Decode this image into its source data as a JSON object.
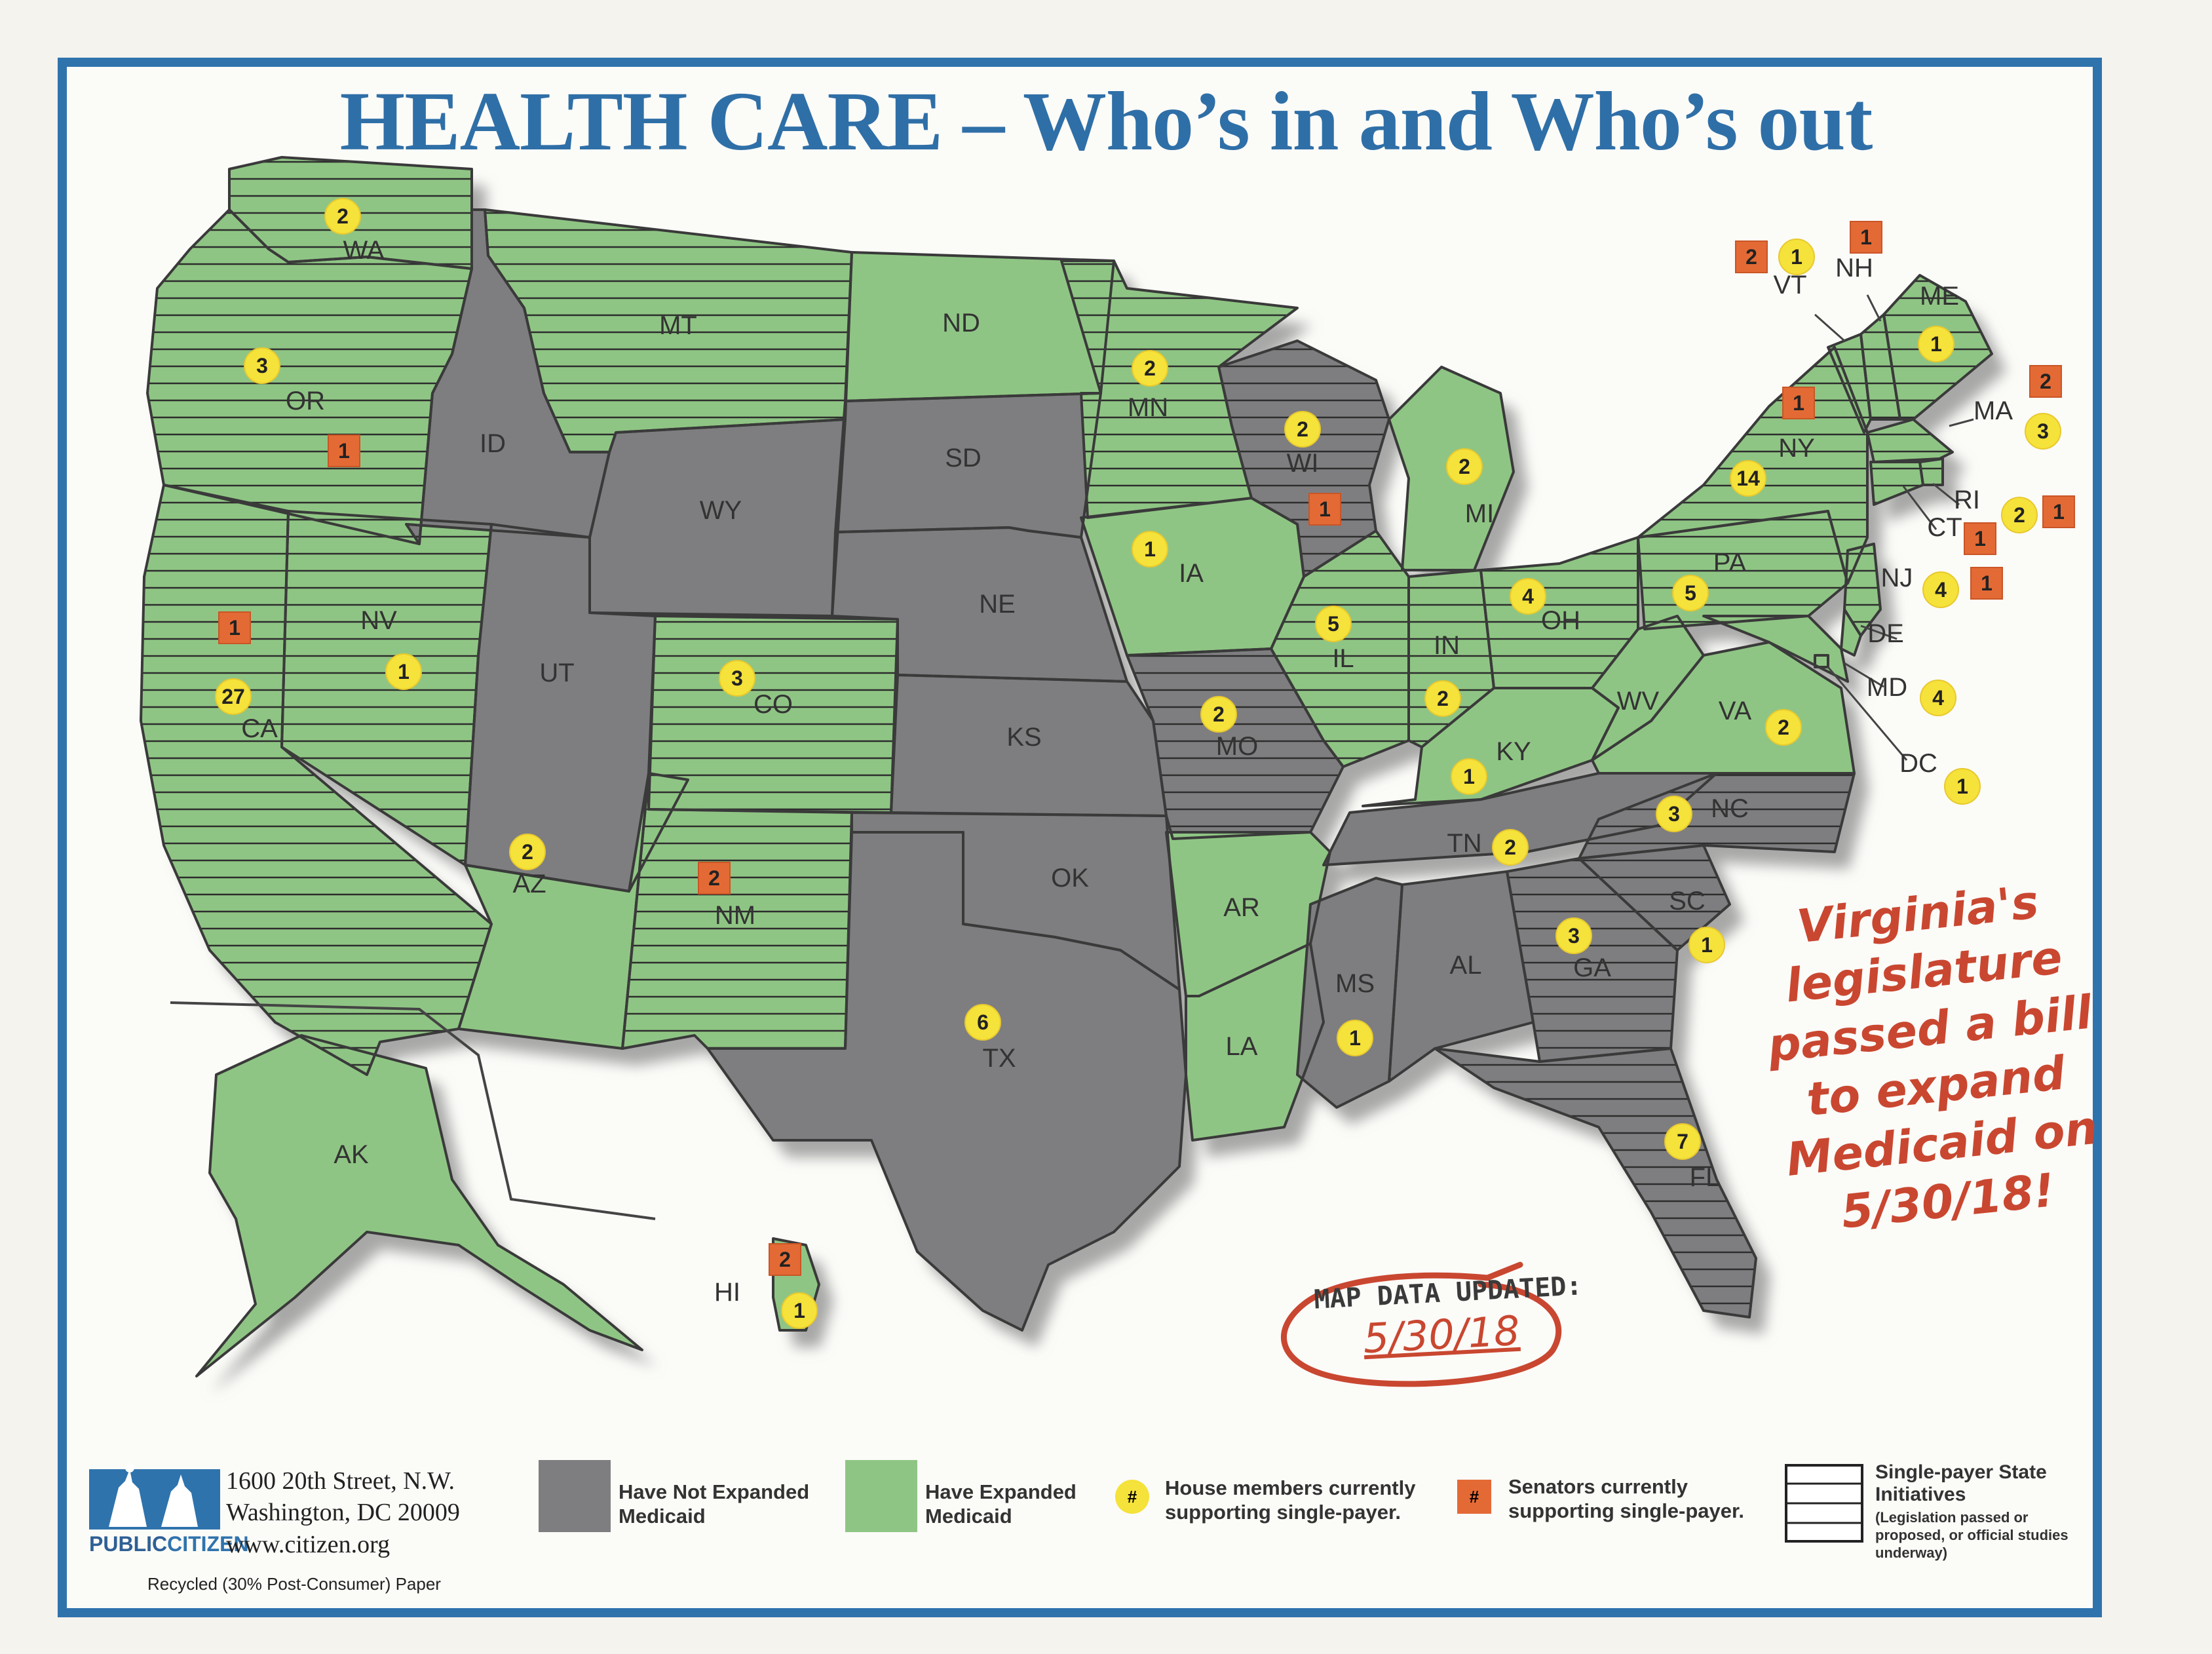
{
  "title": "HEALTH CARE – Who’s in and Who’s out",
  "states": [
    {
      "abbr": "WA",
      "medicaid": "expanded",
      "single_payer_initiative": true,
      "house": 2,
      "senate": null
    },
    {
      "abbr": "OR",
      "medicaid": "expanded",
      "single_payer_initiative": true,
      "house": 3,
      "senate": 1
    },
    {
      "abbr": "CA",
      "medicaid": "expanded",
      "single_payer_initiative": true,
      "house": 27,
      "senate": 1
    },
    {
      "abbr": "NV",
      "medicaid": "expanded",
      "single_payer_initiative": true,
      "house": 1,
      "senate": null
    },
    {
      "abbr": "ID",
      "medicaid": "not_expanded",
      "single_payer_initiative": false,
      "house": null,
      "senate": null
    },
    {
      "abbr": "MT",
      "medicaid": "expanded",
      "single_payer_initiative": true,
      "house": null,
      "senate": null
    },
    {
      "abbr": "WY",
      "medicaid": "not_expanded",
      "single_payer_initiative": false,
      "house": null,
      "senate": null
    },
    {
      "abbr": "UT",
      "medicaid": "not_expanded",
      "single_payer_initiative": false,
      "house": null,
      "senate": null
    },
    {
      "abbr": "CO",
      "medicaid": "expanded",
      "single_payer_initiative": true,
      "house": 3,
      "senate": null
    },
    {
      "abbr": "AZ",
      "medicaid": "expanded",
      "single_payer_initiative": false,
      "house": 2,
      "senate": null
    },
    {
      "abbr": "NM",
      "medicaid": "expanded",
      "single_payer_initiative": true,
      "house": null,
      "senate": 2
    },
    {
      "abbr": "ND",
      "medicaid": "expanded",
      "single_payer_initiative": false,
      "house": null,
      "senate": null
    },
    {
      "abbr": "SD",
      "medicaid": "not_expanded",
      "single_payer_initiative": false,
      "house": null,
      "senate": null
    },
    {
      "abbr": "NE",
      "medicaid": "not_expanded",
      "single_payer_initiative": false,
      "house": null,
      "senate": null
    },
    {
      "abbr": "KS",
      "medicaid": "not_expanded",
      "single_payer_initiative": false,
      "house": null,
      "senate": null
    },
    {
      "abbr": "OK",
      "medicaid": "not_expanded",
      "single_payer_initiative": false,
      "house": null,
      "senate": null
    },
    {
      "abbr": "TX",
      "medicaid": "not_expanded",
      "single_payer_initiative": false,
      "house": 6,
      "senate": null
    },
    {
      "abbr": "MN",
      "medicaid": "expanded",
      "single_payer_initiative": true,
      "house": 2,
      "senate": null
    },
    {
      "abbr": "IA",
      "medicaid": "expanded",
      "single_payer_initiative": false,
      "house": 1,
      "senate": null
    },
    {
      "abbr": "MO",
      "medicaid": "not_expanded",
      "single_payer_initiative": true,
      "house": 2,
      "senate": null
    },
    {
      "abbr": "AR",
      "medicaid": "expanded",
      "single_payer_initiative": false,
      "house": null,
      "senate": null
    },
    {
      "abbr": "LA",
      "medicaid": "expanded",
      "single_payer_initiative": false,
      "house": null,
      "senate": null
    },
    {
      "abbr": "WI",
      "medicaid": "not_expanded",
      "single_payer_initiative": true,
      "house": 2,
      "senate": 1
    },
    {
      "abbr": "IL",
      "medicaid": "expanded",
      "single_payer_initiative": true,
      "house": 5,
      "senate": null
    },
    {
      "abbr": "MI",
      "medicaid": "expanded",
      "single_payer_initiative": false,
      "house": 2,
      "senate": null
    },
    {
      "abbr": "IN",
      "medicaid": "expanded",
      "single_payer_initiative": true,
      "house": 2,
      "senate": null
    },
    {
      "abbr": "OH",
      "medicaid": "expanded",
      "single_payer_initiative": true,
      "house": 4,
      "senate": null
    },
    {
      "abbr": "KY",
      "medicaid": "expanded",
      "single_payer_initiative": false,
      "house": 1,
      "senate": null
    },
    {
      "abbr": "TN",
      "medicaid": "not_expanded",
      "single_payer_initiative": false,
      "house": 2,
      "senate": null
    },
    {
      "abbr": "MS",
      "medicaid": "not_expanded",
      "single_payer_initiative": false,
      "house": 1,
      "senate": null
    },
    {
      "abbr": "AL",
      "medicaid": "not_expanded",
      "single_payer_initiative": false,
      "house": null,
      "senate": null
    },
    {
      "abbr": "GA",
      "medicaid": "not_expanded",
      "single_payer_initiative": true,
      "house": 3,
      "senate": null
    },
    {
      "abbr": "FL",
      "medicaid": "not_expanded",
      "single_payer_initiative": true,
      "house": 7,
      "senate": null
    },
    {
      "abbr": "SC",
      "medicaid": "not_expanded",
      "single_payer_initiative": true,
      "house": 1,
      "senate": null
    },
    {
      "abbr": "NC",
      "medicaid": "not_expanded",
      "single_payer_initiative": true,
      "house": 3,
      "senate": null
    },
    {
      "abbr": "VA",
      "medicaid": "expanded",
      "single_payer_initiative": false,
      "house": 2,
      "senate": null
    },
    {
      "abbr": "WV",
      "medicaid": "expanded",
      "single_payer_initiative": false,
      "house": null,
      "senate": null
    },
    {
      "abbr": "PA",
      "medicaid": "expanded",
      "single_payer_initiative": true,
      "house": 5,
      "senate": null
    },
    {
      "abbr": "NY",
      "medicaid": "expanded",
      "single_payer_initiative": true,
      "house": 14,
      "senate": 1
    },
    {
      "abbr": "VT",
      "medicaid": "expanded",
      "single_payer_initiative": true,
      "house": 1,
      "senate": 2
    },
    {
      "abbr": "NH",
      "medicaid": "expanded",
      "single_payer_initiative": true,
      "house": null,
      "senate": 1
    },
    {
      "abbr": "ME",
      "medicaid": "expanded",
      "single_payer_initiative": true,
      "house": 1,
      "senate": null
    },
    {
      "abbr": "MA",
      "medicaid": "expanded",
      "single_payer_initiative": true,
      "house": 3,
      "senate": 2
    },
    {
      "abbr": "RI",
      "medicaid": "expanded",
      "single_payer_initiative": true,
      "house": 2,
      "senate": 1
    },
    {
      "abbr": "CT",
      "medicaid": "expanded",
      "single_payer_initiative": true,
      "house": null,
      "senate": 1
    },
    {
      "abbr": "NJ",
      "medicaid": "expanded",
      "single_payer_initiative": true,
      "house": 4,
      "senate": 1
    },
    {
      "abbr": "DE",
      "medicaid": "expanded",
      "single_payer_initiative": false,
      "house": null,
      "senate": null
    },
    {
      "abbr": "MD",
      "medicaid": "expanded",
      "single_payer_initiative": false,
      "house": 4,
      "senate": null
    },
    {
      "abbr": "DC",
      "medicaid": "expanded",
      "single_payer_initiative": false,
      "house": 1,
      "senate": null
    },
    {
      "abbr": "AK",
      "medicaid": "expanded",
      "single_payer_initiative": false,
      "house": null,
      "senate": null
    },
    {
      "abbr": "HI",
      "medicaid": "expanded",
      "single_payer_initiative": false,
      "house": 1,
      "senate": 2
    }
  ],
  "colors": {
    "expanded": "#8fc584",
    "not_expanded": "#7e7e80",
    "house_badge": "#f5e23a",
    "senate_badge": "#e46a35",
    "frame": "#2f73ad",
    "note": "#c94730"
  },
  "annotations": {
    "virginia_note": [
      "Virginia's",
      "legislature",
      "passed a bill",
      "to expand",
      "Medicaid on",
      "5/30/18!"
    ],
    "updated_label": "MAP DATA UPDATED:",
    "updated_date": "5/30/18"
  },
  "legend": {
    "not_expanded": "Have Not Expanded Medicaid",
    "expanded": "Have Expanded Medicaid",
    "house_symbol": "#",
    "house": "House members currently supporting single-payer.",
    "senate_symbol": "#",
    "senate": "Senators currently supporting single-payer.",
    "initiatives_title": "Single-payer State Initiatives",
    "initiatives_note": "(Legislation passed or proposed, or official studies underway)"
  },
  "footer": {
    "address1": "1600 20th Street, N.W.",
    "address2": "Washington, DC 20009",
    "url": "www.citizen.org",
    "brand_a": "PUBLIC",
    "brand_b": "CITIZEN",
    "recycled": "Recycled (30% Post-Consumer) Paper"
  }
}
